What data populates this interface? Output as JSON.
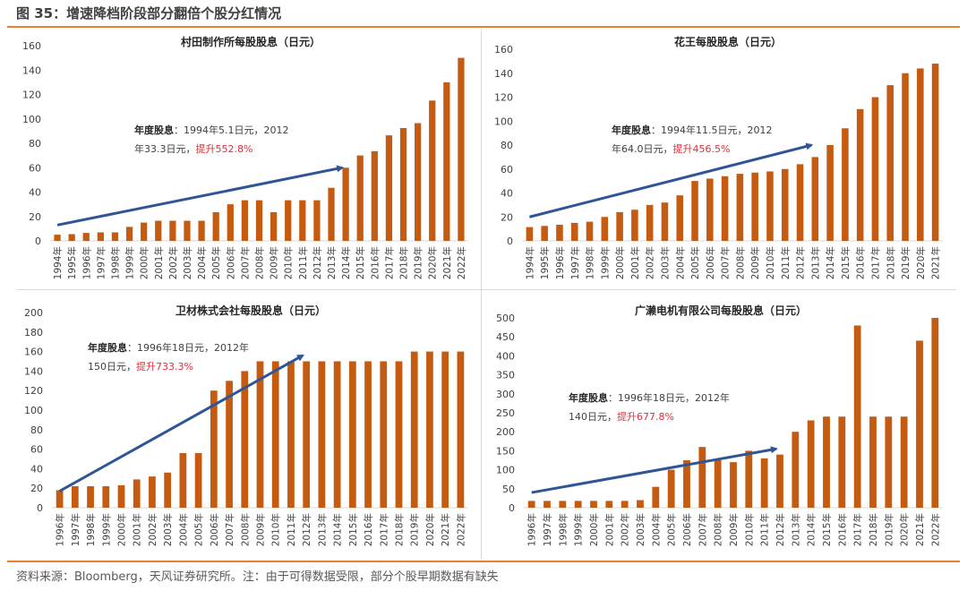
{
  "figure": {
    "title": "图 35：增速降档阶段部分翻倍个股分红情况",
    "source": "资料来源：Bloomberg，天风证券研究所。注：由于可得数据受限，部分个股早期数据有缺失"
  },
  "colors": {
    "bar": "#C55A11",
    "arrow": "#2F5597",
    "accent_rule": "#ED7D31",
    "highlight_text": "#E0303A"
  },
  "chart_data": [
    {
      "type": "bar",
      "title": "村田制作所每股股息（日元）",
      "xlabel": "",
      "ylabel": "",
      "ylim": [
        0,
        160
      ],
      "yticks": [
        0,
        20,
        40,
        60,
        80,
        100,
        120,
        140,
        160
      ],
      "categories": [
        "1994年",
        "1995年",
        "1996年",
        "1997年",
        "1998年",
        "1999年",
        "2000年",
        "2001年",
        "2002年",
        "2003年",
        "2004年",
        "2005年",
        "2006年",
        "2007年",
        "2008年",
        "2009年",
        "2010年",
        "2011年",
        "2012年",
        "2013年",
        "2014年",
        "2015年",
        "2016年",
        "2017年",
        "2018年",
        "2019年",
        "2020年",
        "2021年",
        "2022年"
      ],
      "values": [
        5.1,
        5.5,
        6.5,
        7,
        7,
        11.5,
        15,
        16.5,
        16.5,
        16.5,
        16.5,
        23.5,
        30,
        33.3,
        33.3,
        23.5,
        33.3,
        33.3,
        33.3,
        43.5,
        60,
        70,
        73.5,
        86.5,
        92.5,
        96.5,
        115,
        130,
        150
      ],
      "grid": false,
      "legend": "none",
      "annotation": {
        "label": "年度股息",
        "text1": "：1994年5.1日元，2012",
        "text2": "年33.3日元，",
        "highlight": "提升552.8%"
      },
      "arrow": {
        "from": {
          "category": "1994年",
          "value": 13
        },
        "to": {
          "category": "2014年",
          "value": 60
        }
      }
    },
    {
      "type": "bar",
      "title": "花王每股股息（日元）",
      "xlabel": "",
      "ylabel": "",
      "ylim": [
        0,
        160
      ],
      "yticks": [
        0,
        20,
        40,
        60,
        80,
        100,
        120,
        140,
        160
      ],
      "categories": [
        "1994年",
        "1995年",
        "1996年",
        "1997年",
        "1998年",
        "1999年",
        "2000年",
        "2001年",
        "2002年",
        "2003年",
        "2004年",
        "2005年",
        "2006年",
        "2007年",
        "2008年",
        "2009年",
        "2010年",
        "2011年",
        "2012年",
        "2013年",
        "2014年",
        "2015年",
        "2016年",
        "2017年",
        "2018年",
        "2019年",
        "2020年",
        "2021年"
      ],
      "values": [
        11.5,
        12.5,
        13.5,
        15,
        16,
        20,
        24,
        26,
        30,
        32,
        38,
        50,
        52,
        54,
        56,
        57,
        58,
        60,
        64,
        70,
        80,
        94,
        110,
        120,
        130,
        140,
        144,
        148
      ],
      "grid": false,
      "legend": "none",
      "annotation": {
        "label": "年度股息",
        "text1": "：1994年11.5日元，2012",
        "text2": "年64.0日元，",
        "highlight": "提升456.5%"
      },
      "arrow": {
        "from": {
          "category": "1994年",
          "value": 20
        },
        "to": {
          "category": "2013年",
          "value": 80
        }
      }
    },
    {
      "type": "bar",
      "title": "卫材株式会社每股股息（日元）",
      "xlabel": "",
      "ylabel": "",
      "ylim": [
        0,
        200
      ],
      "yticks": [
        0,
        20,
        40,
        60,
        80,
        100,
        120,
        140,
        160,
        180,
        200
      ],
      "categories": [
        "1996年",
        "1997年",
        "1998年",
        "1999年",
        "2000年",
        "2001年",
        "2002年",
        "2003年",
        "2004年",
        "2005年",
        "2006年",
        "2007年",
        "2008年",
        "2009年",
        "2010年",
        "2011年",
        "2012年",
        "2013年",
        "2014年",
        "2015年",
        "2016年",
        "2017年",
        "2018年",
        "2019年",
        "2020年",
        "2021年",
        "2022年"
      ],
      "values": [
        18,
        22,
        22,
        22,
        23,
        29,
        32,
        36,
        56,
        56,
        120,
        130,
        140,
        150,
        150,
        150,
        150,
        150,
        150,
        150,
        150,
        150,
        150,
        160,
        160,
        160,
        160
      ],
      "grid": false,
      "legend": "none",
      "annotation": {
        "label": "年度股息",
        "text1": "：1996年18日元，2012年",
        "text2": "150日元，",
        "highlight": "提升733.3%"
      },
      "arrow": {
        "from": {
          "category": "1996年",
          "value": 17
        },
        "to": {
          "category": "2012年",
          "value": 156
        }
      }
    },
    {
      "type": "bar",
      "title": "广濑电机有限公司每股股息（日元）",
      "xlabel": "",
      "ylabel": "",
      "ylim": [
        0,
        500
      ],
      "yticks": [
        0,
        50,
        100,
        150,
        200,
        250,
        300,
        350,
        400,
        450,
        500
      ],
      "categories": [
        "1996年",
        "1997年",
        "1998年",
        "1999年",
        "2000年",
        "2001年",
        "2002年",
        "2003年",
        "2004年",
        "2005年",
        "2006年",
        "2007年",
        "2008年",
        "2009年",
        "2010年",
        "2011年",
        "2012年",
        "2013年",
        "2014年",
        "2015年",
        "2016年",
        "2017年",
        "2018年",
        "2019年",
        "2020年",
        "2021年",
        "2022年"
      ],
      "values": [
        18,
        18,
        18,
        18,
        18,
        18,
        18,
        20,
        55,
        100,
        125,
        160,
        125,
        120,
        150,
        130,
        140,
        200,
        230,
        240,
        240,
        480,
        240,
        240,
        240,
        440,
        500
      ],
      "grid": false,
      "legend": "none",
      "annotation": {
        "label": "年度股息",
        "text1": "：1996年18日元，2012年",
        "text2": "140日元，",
        "highlight": "提升677.8%"
      },
      "arrow": {
        "from": {
          "category": "1996年",
          "value": 40
        },
        "to": {
          "category": "2012年",
          "value": 155
        }
      }
    }
  ]
}
